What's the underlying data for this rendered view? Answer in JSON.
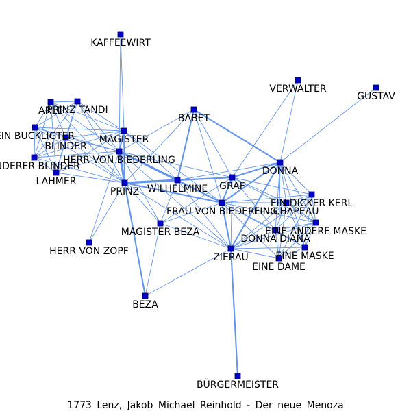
{
  "caption": "1773 Lenz, Jakob Michael Reinhold - Der neue Menoza",
  "colors": {
    "edge": "#6495ed",
    "node": "#0000cd",
    "background": "#ffffff"
  },
  "nodes": [
    {
      "id": "kaffeewirt",
      "label": "KAFFEEWIRT"
    },
    {
      "id": "verwalter",
      "label": "VERWALTER"
    },
    {
      "id": "gustav",
      "label": "GUSTAV"
    },
    {
      "id": "arle",
      "label": "ARLE"
    },
    {
      "id": "prinz-tandi",
      "label": "PRINZ TANDI"
    },
    {
      "id": "babet",
      "label": "BABET"
    },
    {
      "id": "ein-buckligter",
      "label": "EIN BUCKLIGTER"
    },
    {
      "id": "blinder",
      "label": "BLINDER"
    },
    {
      "id": "magister",
      "label": "MAGISTER"
    },
    {
      "id": "herr-von-biederling",
      "label": "HERR VON BIEDERLING"
    },
    {
      "id": "anderer-blinder",
      "label": "ANDERER BLINDER"
    },
    {
      "id": "donna",
      "label": "DONNA"
    },
    {
      "id": "lahmer",
      "label": "LAHMER"
    },
    {
      "id": "graf",
      "label": "GRAF"
    },
    {
      "id": "wilhelmine",
      "label": "WILHELMINE"
    },
    {
      "id": "prinz",
      "label": "PRINZ"
    },
    {
      "id": "ein-dicker-kerl",
      "label": "EIN DICKER KERL"
    },
    {
      "id": "frau-von-biederling",
      "label": "FRAU VON BIEDERLING"
    },
    {
      "id": "ein-chapeau",
      "label": "EIN CHAPEAU"
    },
    {
      "id": "magister-beza",
      "label": "MAGISTER BEZA"
    },
    {
      "id": "eine-andere-maske",
      "label": "EINE ANDERE MASKE"
    },
    {
      "id": "donna-diana",
      "label": "DONNA DIANA"
    },
    {
      "id": "herr-von-zopf",
      "label": "HERR VON ZOPF"
    },
    {
      "id": "eine-maske",
      "label": "EINE MASKE"
    },
    {
      "id": "zierau",
      "label": "ZIERAU"
    },
    {
      "id": "eine-dame",
      "label": "EINE DAME"
    },
    {
      "id": "beza",
      "label": "BEZA"
    },
    {
      "id": "buergermeister",
      "label": "BÜRGERMEISTER"
    }
  ],
  "edges": [
    [
      "herr-von-biederling",
      "prinz",
      3
    ],
    [
      "herr-von-biederling",
      "wilhelmine",
      3
    ],
    [
      "herr-von-biederling",
      "magister",
      2
    ],
    [
      "herr-von-biederling",
      "frau-von-biederling",
      2
    ],
    [
      "herr-von-biederling",
      "graf",
      1
    ],
    [
      "herr-von-biederling",
      "blinder",
      1
    ],
    [
      "herr-von-biederling",
      "ein-buckligter",
      1
    ],
    [
      "herr-von-biederling",
      "anderer-blinder",
      1
    ],
    [
      "herr-von-biederling",
      "lahmer",
      1
    ],
    [
      "herr-von-biederling",
      "arle",
      1
    ],
    [
      "herr-von-biederling",
      "prinz-tandi",
      1
    ],
    [
      "herr-von-biederling",
      "kaffeewirt",
      1
    ],
    [
      "herr-von-biederling",
      "beza",
      1
    ],
    [
      "herr-von-biederling",
      "herr-von-zopf",
      1
    ],
    [
      "herr-von-biederling",
      "magister-beza",
      1
    ],
    [
      "herr-von-biederling",
      "babet",
      1
    ],
    [
      "herr-von-biederling",
      "zierau",
      1
    ],
    [
      "prinz",
      "wilhelmine",
      3
    ],
    [
      "prinz",
      "frau-von-biederling",
      2
    ],
    [
      "prinz",
      "magister",
      2
    ],
    [
      "prinz",
      "graf",
      2
    ],
    [
      "prinz",
      "beza",
      2
    ],
    [
      "prinz",
      "herr-von-zopf",
      1
    ],
    [
      "prinz",
      "magister-beza",
      1
    ],
    [
      "prinz",
      "zierau",
      1
    ],
    [
      "prinz",
      "blinder",
      1
    ],
    [
      "prinz",
      "ein-buckligter",
      1
    ],
    [
      "prinz",
      "anderer-blinder",
      1
    ],
    [
      "prinz",
      "lahmer",
      1
    ],
    [
      "prinz",
      "arle",
      1
    ],
    [
      "prinz",
      "prinz-tandi",
      1
    ],
    [
      "prinz",
      "babet",
      1
    ],
    [
      "magister",
      "wilhelmine",
      1
    ],
    [
      "magister",
      "kaffeewirt",
      1
    ],
    [
      "magister",
      "blinder",
      1
    ],
    [
      "magister",
      "ein-buckligter",
      1
    ],
    [
      "magister",
      "anderer-blinder",
      1
    ],
    [
      "magister",
      "lahmer",
      1
    ],
    [
      "magister",
      "arle",
      1
    ],
    [
      "magister",
      "prinz-tandi",
      1
    ],
    [
      "magister",
      "frau-von-biederling",
      1
    ],
    [
      "wilhelmine",
      "graf",
      2
    ],
    [
      "wilhelmine",
      "frau-von-biederling",
      2
    ],
    [
      "wilhelmine",
      "babet",
      2
    ],
    [
      "wilhelmine",
      "donna",
      1
    ],
    [
      "wilhelmine",
      "zierau",
      1
    ],
    [
      "wilhelmine",
      "magister-beza",
      1
    ],
    [
      "graf",
      "frau-von-biederling",
      2
    ],
    [
      "graf",
      "donna",
      2
    ],
    [
      "graf",
      "zierau",
      1
    ],
    [
      "graf",
      "magister-beza",
      1
    ],
    [
      "graf",
      "babet",
      1
    ],
    [
      "graf",
      "ein-dicker-kerl",
      1
    ],
    [
      "graf",
      "ein-chapeau",
      1
    ],
    [
      "graf",
      "verwalter",
      1
    ],
    [
      "graf",
      "donna-diana",
      1
    ],
    [
      "graf",
      "eine-andere-maske",
      1
    ],
    [
      "babet",
      "donna",
      2
    ],
    [
      "babet",
      "frau-von-biederling",
      1
    ],
    [
      "donna",
      "frau-von-biederling",
      2
    ],
    [
      "donna",
      "zierau",
      2
    ],
    [
      "donna",
      "verwalter",
      1
    ],
    [
      "donna",
      "gustav",
      1
    ],
    [
      "donna",
      "ein-dicker-kerl",
      1
    ],
    [
      "donna",
      "ein-chapeau",
      1
    ],
    [
      "donna",
      "eine-andere-maske",
      1
    ],
    [
      "donna",
      "donna-diana",
      1
    ],
    [
      "donna",
      "eine-maske",
      1
    ],
    [
      "donna",
      "eine-dame",
      1
    ],
    [
      "frau-von-biederling",
      "zierau",
      2
    ],
    [
      "frau-von-biederling",
      "magister-beza",
      1
    ],
    [
      "frau-von-biederling",
      "ein-dicker-kerl",
      1
    ],
    [
      "frau-von-biederling",
      "ein-chapeau",
      1
    ],
    [
      "frau-von-biederling",
      "eine-andere-maske",
      1
    ],
    [
      "frau-von-biederling",
      "donna-diana",
      1
    ],
    [
      "frau-von-biederling",
      "eine-maske",
      1
    ],
    [
      "frau-von-biederling",
      "eine-dame",
      1
    ],
    [
      "zierau",
      "buergermeister",
      2
    ],
    [
      "zierau",
      "magister-beza",
      1
    ],
    [
      "zierau",
      "beza",
      1
    ],
    [
      "zierau",
      "ein-dicker-kerl",
      1
    ],
    [
      "zierau",
      "ein-chapeau",
      1
    ],
    [
      "zierau",
      "eine-andere-maske",
      1
    ],
    [
      "zierau",
      "donna-diana",
      1
    ],
    [
      "zierau",
      "eine-maske",
      1
    ],
    [
      "zierau",
      "eine-dame",
      1
    ],
    [
      "ein-dicker-kerl",
      "ein-chapeau",
      1
    ],
    [
      "ein-dicker-kerl",
      "eine-andere-maske",
      1
    ],
    [
      "ein-dicker-kerl",
      "donna-diana",
      1
    ],
    [
      "ein-dicker-kerl",
      "eine-maske",
      1
    ],
    [
      "ein-dicker-kerl",
      "eine-dame",
      1
    ],
    [
      "ein-chapeau",
      "eine-andere-maske",
      1
    ],
    [
      "ein-chapeau",
      "donna-diana",
      1
    ],
    [
      "ein-chapeau",
      "eine-maske",
      1
    ],
    [
      "ein-chapeau",
      "eine-dame",
      1
    ],
    [
      "eine-andere-maske",
      "donna-diana",
      1
    ],
    [
      "eine-andere-maske",
      "eine-maske",
      1
    ],
    [
      "eine-andere-maske",
      "eine-dame",
      1
    ],
    [
      "donna-diana",
      "eine-maske",
      1
    ],
    [
      "donna-diana",
      "eine-dame",
      1
    ],
    [
      "eine-maske",
      "eine-dame",
      1
    ],
    [
      "arle",
      "prinz-tandi",
      1
    ],
    [
      "arle",
      "ein-buckligter",
      1
    ],
    [
      "arle",
      "blinder",
      1
    ],
    [
      "arle",
      "anderer-blinder",
      1
    ],
    [
      "arle",
      "lahmer",
      1
    ],
    [
      "prinz-tandi",
      "ein-buckligter",
      1
    ],
    [
      "prinz-tandi",
      "blinder",
      1
    ],
    [
      "prinz-tandi",
      "anderer-blinder",
      1
    ],
    [
      "prinz-tandi",
      "lahmer",
      1
    ],
    [
      "ein-buckligter",
      "blinder",
      1
    ],
    [
      "ein-buckligter",
      "anderer-blinder",
      1
    ],
    [
      "ein-buckligter",
      "lahmer",
      1
    ],
    [
      "blinder",
      "anderer-blinder",
      1
    ],
    [
      "blinder",
      "lahmer",
      1
    ],
    [
      "anderer-blinder",
      "lahmer",
      1
    ],
    [
      "magister-beza",
      "beza",
      1
    ]
  ]
}
